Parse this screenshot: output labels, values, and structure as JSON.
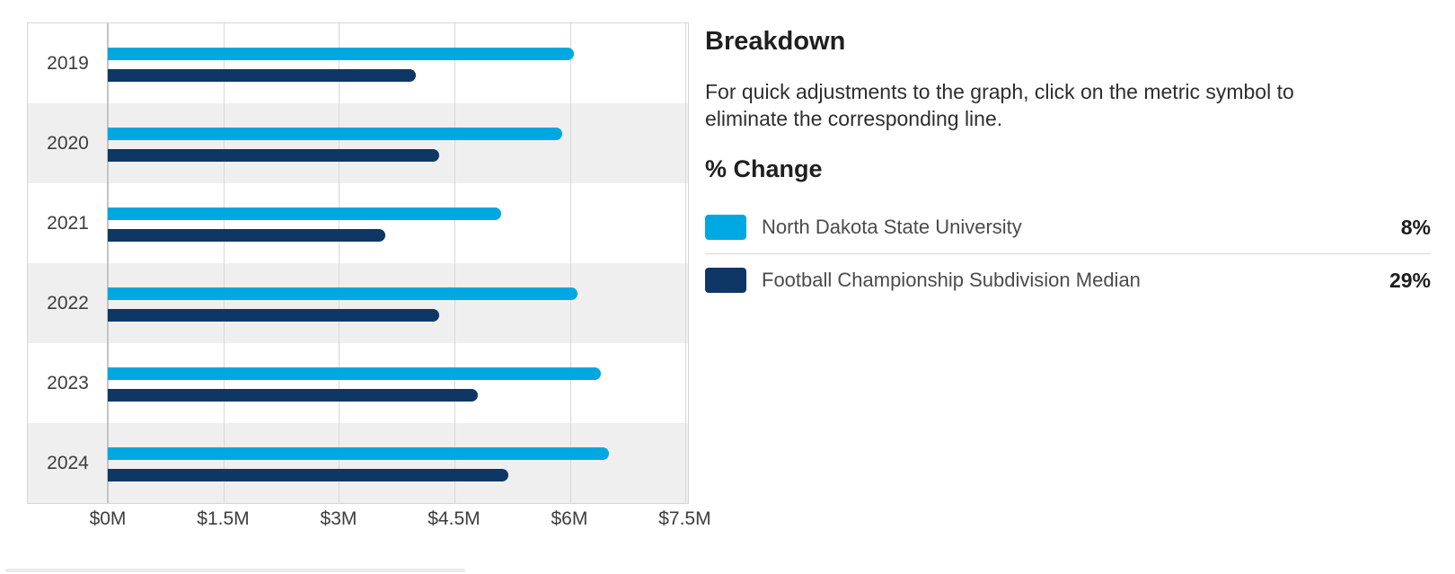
{
  "chart_data": {
    "type": "bar",
    "orientation": "horizontal",
    "categories": [
      "2019",
      "2020",
      "2021",
      "2022",
      "2023",
      "2024"
    ],
    "series": [
      {
        "name": "North Dakota State University",
        "color": "#00A8E1",
        "values": [
          6.05,
          5.9,
          5.1,
          6.1,
          6.4,
          6.5
        ]
      },
      {
        "name": "Football Championship Subdivision Median",
        "color": "#0E3765",
        "values": [
          4.0,
          4.3,
          3.6,
          4.3,
          4.8,
          5.2
        ]
      }
    ],
    "unit": "USD millions",
    "xlabel": "",
    "ylabel": "",
    "x_axis": {
      "min": 0,
      "max": 7.5,
      "tick_values": [
        0,
        1.5,
        3,
        4.5,
        6,
        7.5
      ],
      "tick_labels": [
        "$0M",
        "$1.5M",
        "$3M",
        "$4.5M",
        "$6M",
        "$7.5M"
      ]
    },
    "grid": "vertical gridlines on",
    "row_striping": "alternate rows shaded",
    "legend_position": "right panel"
  },
  "panel": {
    "title": "Breakdown",
    "description": "For quick adjustments to the graph, click on the metric symbol to eliminate the corresponding line.",
    "change_heading": "% Change",
    "legend": [
      {
        "label": "North Dakota State University",
        "value": "8%",
        "color": "#00A8E1"
      },
      {
        "label": "Football Championship Subdivision Median",
        "value": "29%",
        "color": "#0E3765"
      }
    ]
  },
  "colors": {
    "series_primary": "#00A8E1",
    "series_secondary": "#0E3765",
    "row_alt_bg": "#F0EFEF",
    "gridline": "#D9D9D9",
    "chart_border": "#D6D6D6",
    "axis_text": "#3D3D3D",
    "panel_heading_text": "#1F1F1F",
    "panel_body_text": "#2E2E2E"
  }
}
